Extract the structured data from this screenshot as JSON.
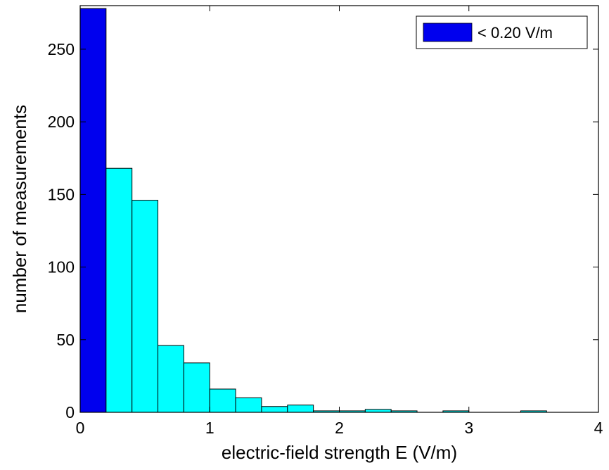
{
  "chart_data": {
    "type": "bar",
    "xlabel": "electric-field strength E (V/m)",
    "ylabel": "number of measurements",
    "xlim": [
      0,
      4
    ],
    "ylim": [
      0,
      280
    ],
    "xticks": [
      "0",
      "1",
      "2",
      "3",
      "4"
    ],
    "yticks": [
      "0",
      "50",
      "100",
      "150",
      "200",
      "250"
    ],
    "bin_width": 0.2,
    "bins": [
      0.0,
      0.2,
      0.4,
      0.6,
      0.8,
      1.0,
      1.2,
      1.4,
      1.6,
      1.8,
      2.0,
      2.2,
      2.4,
      2.6,
      2.8,
      3.0,
      3.2,
      3.4,
      3.6,
      3.8
    ],
    "values": [
      278,
      168,
      146,
      46,
      34,
      16,
      10,
      4,
      5,
      1,
      1,
      2,
      1,
      0,
      1,
      0,
      0,
      1,
      0,
      0
    ],
    "highlight_bins": 1,
    "colors": {
      "highlight": "#0000ee",
      "normal": "#00ffff",
      "edge": "#000000"
    },
    "legend": {
      "label": "< 0.20 V/m",
      "position": "top-right",
      "color": "#0000ee"
    },
    "grid": false
  }
}
